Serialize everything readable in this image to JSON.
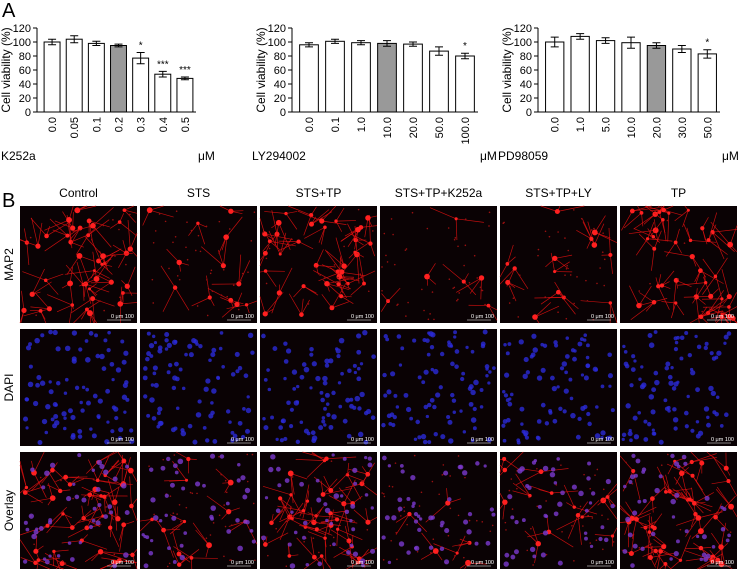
{
  "panel_labels": [
    "A",
    "B"
  ],
  "chart_data": [
    {
      "type": "bar",
      "y_label": "Cell viability (%)",
      "x_label": "K252a",
      "unit": "μM",
      "categories": [
        "0.0",
        "0.05",
        "0.1",
        "0.2",
        "0.3",
        "0.4",
        "0.5"
      ],
      "values": [
        100,
        104,
        98,
        95,
        77,
        54,
        48
      ],
      "errors": [
        4,
        5,
        3,
        2,
        8,
        4,
        2
      ],
      "colors": [
        "#ffffff",
        "#ffffff",
        "#ffffff",
        "#999999",
        "#ffffff",
        "#ffffff",
        "#ffffff"
      ],
      "annotations": [
        {
          "index": 4,
          "text": "*"
        },
        {
          "index": 5,
          "text": "***"
        },
        {
          "index": 6,
          "text": "***"
        }
      ],
      "ylim": [
        0,
        120
      ],
      "yticks": [
        0,
        20,
        40,
        60,
        80,
        100,
        120
      ]
    },
    {
      "type": "bar",
      "y_label": "Cell viability (%)",
      "x_label": "LY294002",
      "unit": "μM",
      "categories": [
        "0.0",
        "0.1",
        "1.0",
        "10.0",
        "20.0",
        "50.0",
        "100.0"
      ],
      "values": [
        96,
        101,
        99,
        98,
        97,
        87,
        80
      ],
      "errors": [
        3,
        3,
        3,
        4,
        3,
        6,
        4
      ],
      "colors": [
        "#ffffff",
        "#ffffff",
        "#ffffff",
        "#999999",
        "#ffffff",
        "#ffffff",
        "#ffffff"
      ],
      "annotations": [
        {
          "index": 6,
          "text": "*"
        }
      ],
      "ylim": [
        0,
        120
      ],
      "yticks": [
        0,
        20,
        40,
        60,
        80,
        100,
        120
      ]
    },
    {
      "type": "bar",
      "y_label": "Cell viability (%)",
      "x_label": "PD98059",
      "unit": "μM",
      "categories": [
        "0.0",
        "1.0",
        "5.0",
        "10.0",
        "20.0",
        "30.0",
        "50.0"
      ],
      "values": [
        100,
        108,
        102,
        99,
        95,
        90,
        83
      ],
      "errors": [
        7,
        4,
        4,
        8,
        4,
        5,
        6
      ],
      "colors": [
        "#ffffff",
        "#ffffff",
        "#ffffff",
        "#ffffff",
        "#999999",
        "#ffffff",
        "#ffffff"
      ],
      "annotations": [
        {
          "index": 6,
          "text": "*"
        }
      ],
      "ylim": [
        0,
        120
      ],
      "yticks": [
        0,
        20,
        40,
        60,
        80,
        100,
        120
      ]
    }
  ],
  "panel_b": {
    "columns": [
      "Control",
      "STS",
      "STS+TP",
      "STS+TP+K252a",
      "STS+TP+LY",
      "TP"
    ],
    "rows": [
      "MAP2",
      "DAPI",
      "Overlay"
    ],
    "scale_bar": "0  μm  100"
  }
}
